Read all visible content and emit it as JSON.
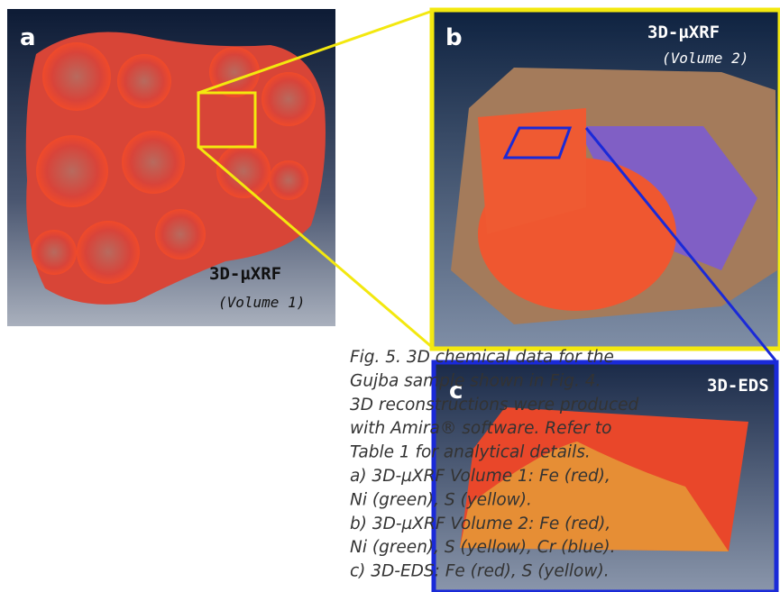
{
  "panels": [
    {
      "label": "a",
      "title": "3D-µXRF",
      "subtitle": "(Volume 1)"
    },
    {
      "label": "b",
      "title": "3D-µXRF",
      "subtitle": "(Volume 2)"
    },
    {
      "label": "c",
      "title": "3D-EDS"
    }
  ],
  "caption": {
    "lines": [
      "Fig. 5. 3D chemical data for the",
      "Gujba sample shown in Fig. 4.",
      "3D reconstructions were produced",
      "with Amira® software. Refer to",
      "Table 1 for analytical details.",
      "a) 3D-µXRF Volume 1: Fe (red),",
      "Ni (green), S (yellow).",
      "b) 3D-µXRF Volume 2: Fe (red),",
      "Ni (green), S (yellow), Cr (blue).",
      "c) 3D-EDS: Fe (red), S (yellow)."
    ]
  }
}
